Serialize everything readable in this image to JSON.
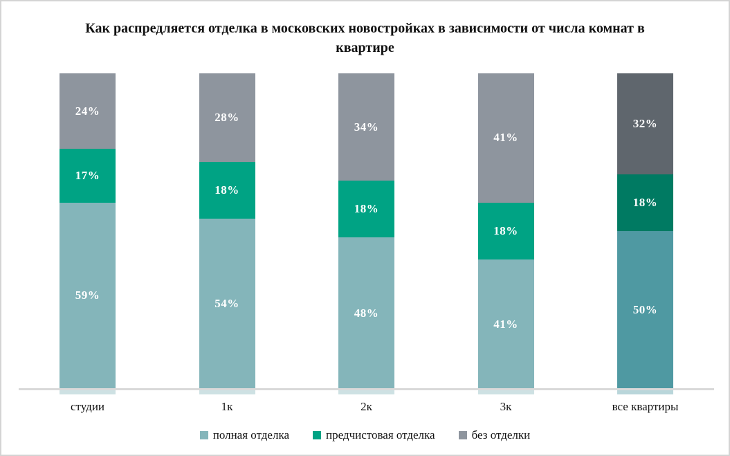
{
  "title": "Как распредляется отделка в московских новостройках в зависимости от числа комнат в квартире",
  "chart_data": {
    "type": "bar",
    "variant": "stacked-100",
    "orientation": "vertical",
    "categories": [
      "студии",
      "1к",
      "2к",
      "3к",
      "все квартиры"
    ],
    "series": [
      {
        "name": "полная отделка",
        "values": [
          59,
          54,
          48,
          41,
          50
        ],
        "color": "#84b5ba",
        "color_emphasis": "#4f99a2"
      },
      {
        "name": "предчистовая отделка",
        "values": [
          17,
          18,
          18,
          18,
          18
        ],
        "color": "#00a384",
        "color_emphasis": "#007a62"
      },
      {
        "name": "без отделки",
        "values": [
          24,
          28,
          34,
          41,
          32
        ],
        "color": "#8e959e",
        "color_emphasis": "#5f666d"
      }
    ],
    "emphasized_category": "все квартиры",
    "value_suffix": "%",
    "ylim": [
      0,
      100
    ],
    "grid": false,
    "legend_position": "bottom",
    "data_label_color": "#ffffff",
    "axis_line_color": "#d9d9d9"
  }
}
